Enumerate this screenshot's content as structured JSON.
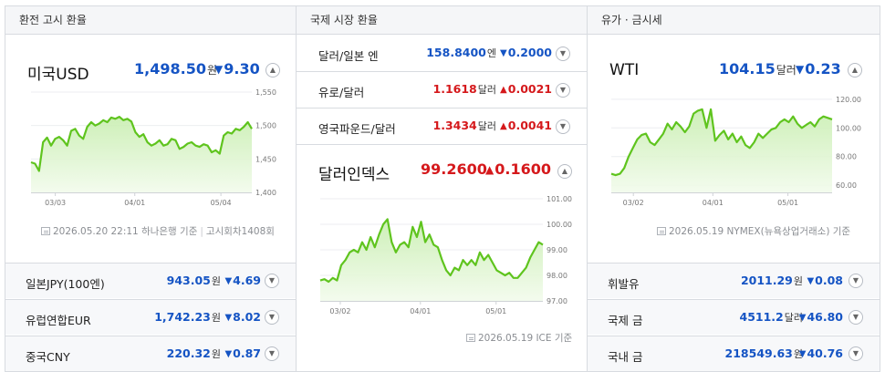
{
  "col1": {
    "header": "환전 고시 환율",
    "feature": {
      "name": "미국USD",
      "price": "1,498.50",
      "unit": "원",
      "change": "9.30",
      "dir": "down"
    },
    "chart": {
      "yticks": [
        "1,550",
        "1,500",
        "1,450",
        "1,400"
      ],
      "xticks": [
        "03/03",
        "04/01",
        "05/04"
      ]
    },
    "source": {
      "date": "2026.05.20 22:11",
      "bank": "하나은행 기준",
      "round": "고시회차1408회"
    },
    "rows": [
      {
        "name": "일본JPY(100엔)",
        "value": "943.05",
        "unit": "원",
        "change": "4.69",
        "dir": "down"
      },
      {
        "name": "유럽연합EUR",
        "value": "1,742.23",
        "unit": "원",
        "change": "8.02",
        "dir": "down"
      },
      {
        "name": "중국CNY",
        "value": "220.32",
        "unit": "원",
        "change": "0.87",
        "dir": "down"
      }
    ]
  },
  "col2": {
    "header": "국제 시장 환율",
    "rows": [
      {
        "name": "달러/일본 엔",
        "value": "158.8400",
        "unit": "엔",
        "change": "0.2000",
        "dir": "down"
      },
      {
        "name": "유로/달러",
        "value": "1.1618",
        "unit": "달러",
        "change": "0.0021",
        "dir": "up"
      },
      {
        "name": "영국파운드/달러",
        "value": "1.3434",
        "unit": "달러",
        "change": "0.0041",
        "dir": "up"
      }
    ],
    "feature": {
      "name": "달러인덱스",
      "price": "99.2600",
      "change": "0.1600",
      "dir": "up"
    },
    "chart": {
      "yticks": [
        "101.00",
        "100.00",
        "99.00",
        "98.00",
        "97.00"
      ],
      "xticks": [
        "03/02",
        "04/01",
        "05/01"
      ]
    },
    "source": {
      "text": "2026.05.19 ICE 기준"
    }
  },
  "col3": {
    "header": "유가 · 금시세",
    "feature": {
      "name": "WTI",
      "price": "104.15",
      "unit": "달러",
      "change": "0.23",
      "dir": "down"
    },
    "chart": {
      "yticks": [
        "120.00",
        "100.00",
        "80.00",
        "60.00"
      ],
      "xticks": [
        "03/02",
        "04/01",
        "05/01"
      ]
    },
    "source": {
      "text": "2026.05.19 NYMEX(뉴욕상업거래소) 기준"
    },
    "rows": [
      {
        "name": "휘발유",
        "value": "2011.29",
        "unit": "원",
        "change": "0.08",
        "dir": "down"
      },
      {
        "name": "국제 금",
        "value": "4511.2",
        "unit": "달러",
        "change": "46.80",
        "dir": "down"
      },
      {
        "name": "국내 금",
        "value": "218549.63",
        "unit": "원",
        "change": "40.76",
        "dir": "down"
      }
    ]
  },
  "chart_data": [
    {
      "type": "area",
      "title": "미국USD",
      "ylim": [
        1400,
        1550
      ],
      "series": [
        {
          "name": "",
          "values": [
            1445,
            1443,
            1432,
            1475,
            1482,
            1470,
            1480,
            1483,
            1478,
            1470,
            1492,
            1495,
            1485,
            1480,
            1498,
            1505,
            1500,
            1503,
            1508,
            1505,
            1512,
            1510,
            1513,
            1508,
            1510,
            1506,
            1490,
            1483,
            1487,
            1475,
            1470,
            1473,
            1478,
            1470,
            1472,
            1480,
            1478,
            1465,
            1468,
            1473,
            1475,
            1470,
            1468,
            1472,
            1470,
            1460,
            1463,
            1458,
            1485,
            1490,
            1488,
            1495,
            1493,
            1498,
            1505,
            1495
          ]
        }
      ]
    },
    {
      "type": "area",
      "title": "달러인덱스",
      "ylim": [
        97,
        101
      ],
      "series": [
        {
          "name": "",
          "values": [
            97.8,
            97.85,
            97.75,
            97.9,
            97.8,
            98.4,
            98.6,
            98.9,
            99.0,
            98.9,
            99.3,
            99.0,
            99.5,
            99.1,
            99.6,
            100.0,
            100.2,
            99.3,
            98.9,
            99.2,
            99.3,
            99.1,
            99.9,
            99.5,
            100.1,
            99.3,
            99.6,
            99.2,
            99.1,
            98.6,
            98.2,
            98.0,
            98.3,
            98.2,
            98.6,
            98.4,
            98.6,
            98.4,
            98.9,
            98.6,
            98.8,
            98.5,
            98.2,
            98.1,
            98.0,
            98.1,
            97.9,
            97.9,
            98.1,
            98.3,
            98.7,
            99.0,
            99.3,
            99.2
          ]
        }
      ]
    },
    {
      "type": "area",
      "title": "WTI",
      "ylim": [
        55,
        125
      ],
      "series": [
        {
          "name": "",
          "values": [
            68,
            67,
            68,
            72,
            80,
            86,
            92,
            95,
            96,
            90,
            88,
            92,
            96,
            103,
            99,
            104,
            101,
            97,
            101,
            110,
            112,
            113,
            100,
            113,
            91,
            95,
            98,
            92,
            96,
            90,
            94,
            88,
            86,
            90,
            96,
            93,
            96,
            99,
            100,
            104,
            106,
            104,
            108,
            103,
            100,
            102,
            104,
            101,
            106,
            108,
            107,
            106
          ]
        }
      ]
    }
  ]
}
